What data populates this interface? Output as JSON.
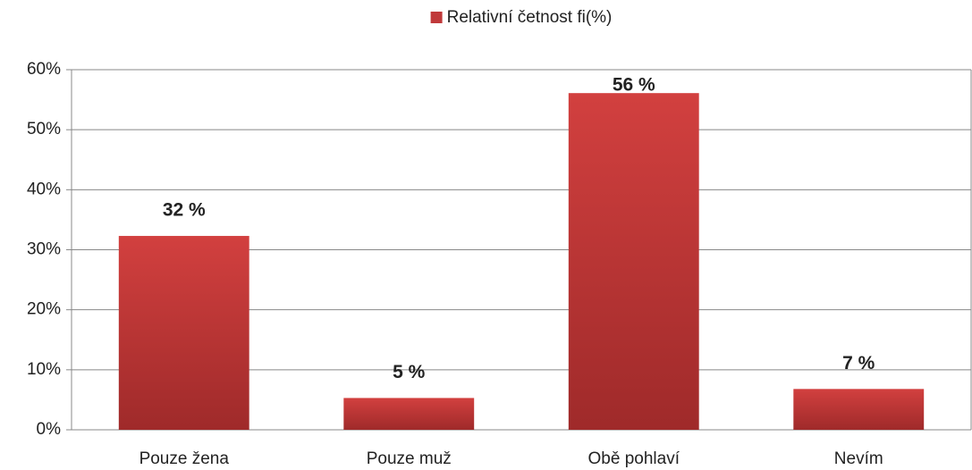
{
  "chart_data": {
    "type": "bar",
    "categories": [
      "Pouze žena",
      "Pouze muž",
      "Obě pohlaví",
      "Nevím"
    ],
    "series": [
      {
        "name": "Relativní četnost fi(%)",
        "color": "#c0393a",
        "values": [
          32.3,
          5.3,
          56.1,
          6.8
        ],
        "value_labels": [
          "32 %",
          "5 %",
          "56 %",
          "7 %"
        ]
      }
    ],
    "ylim": [
      0,
      60
    ],
    "yticks": [
      {
        "value": 0,
        "label": "0%"
      },
      {
        "value": 10,
        "label": "10%"
      },
      {
        "value": 20,
        "label": "20%"
      },
      {
        "value": 30,
        "label": "30%"
      },
      {
        "value": 40,
        "label": "40%"
      },
      {
        "value": 50,
        "label": "50%"
      },
      {
        "value": 60,
        "label": "60%"
      }
    ],
    "grid": true,
    "legend": "top"
  }
}
